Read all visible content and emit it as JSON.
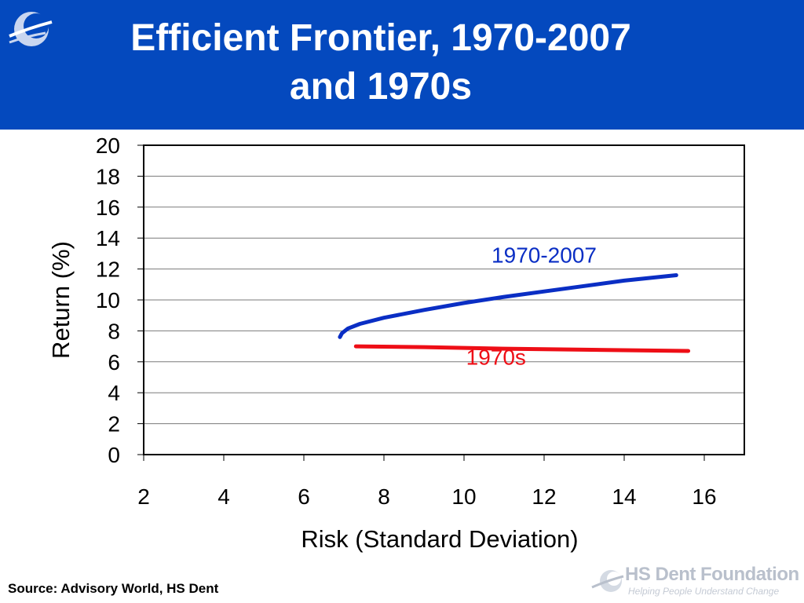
{
  "header": {
    "title_line1": "Efficient Frontier, 1970-2007",
    "title_line2": "and 1970s",
    "background": "#0449be"
  },
  "footer": {
    "source": "Source: Advisory World, HS Dent",
    "brand_name": "HS Dent Foundation",
    "brand_tagline": "Helping People Understand Change"
  },
  "chart_data": {
    "type": "line",
    "xlabel": "Risk (Standard Deviation)",
    "ylabel": "Return (%)",
    "xlim": [
      2,
      17
    ],
    "ylim": [
      0,
      20
    ],
    "xticks": [
      2,
      4,
      6,
      8,
      10,
      12,
      14,
      16
    ],
    "yticks": [
      0,
      2,
      4,
      6,
      8,
      10,
      12,
      14,
      16,
      18,
      20
    ],
    "grid": "horizontal",
    "series": [
      {
        "name": "1970-2007",
        "color": "#0a2ec4",
        "x": [
          6.9,
          6.95,
          7.1,
          7.4,
          8.0,
          9.0,
          10.0,
          11.0,
          12.0,
          13.0,
          14.0,
          15.3
        ],
        "y": [
          7.6,
          7.85,
          8.15,
          8.45,
          8.85,
          9.35,
          9.8,
          10.2,
          10.55,
          10.9,
          11.25,
          11.6
        ]
      },
      {
        "name": "1970s",
        "color": "#ee0e16",
        "x": [
          7.3,
          9.0,
          11.0,
          13.0,
          15.6
        ],
        "y": [
          7.0,
          6.95,
          6.85,
          6.78,
          6.7
        ]
      }
    ],
    "annotations": [
      {
        "text": "1970-2007",
        "x": 12.0,
        "y": 12.4,
        "color": "#0a2ec4"
      },
      {
        "text": "1970s",
        "x": 10.8,
        "y": 5.8,
        "color": "#ee0e16"
      }
    ]
  }
}
